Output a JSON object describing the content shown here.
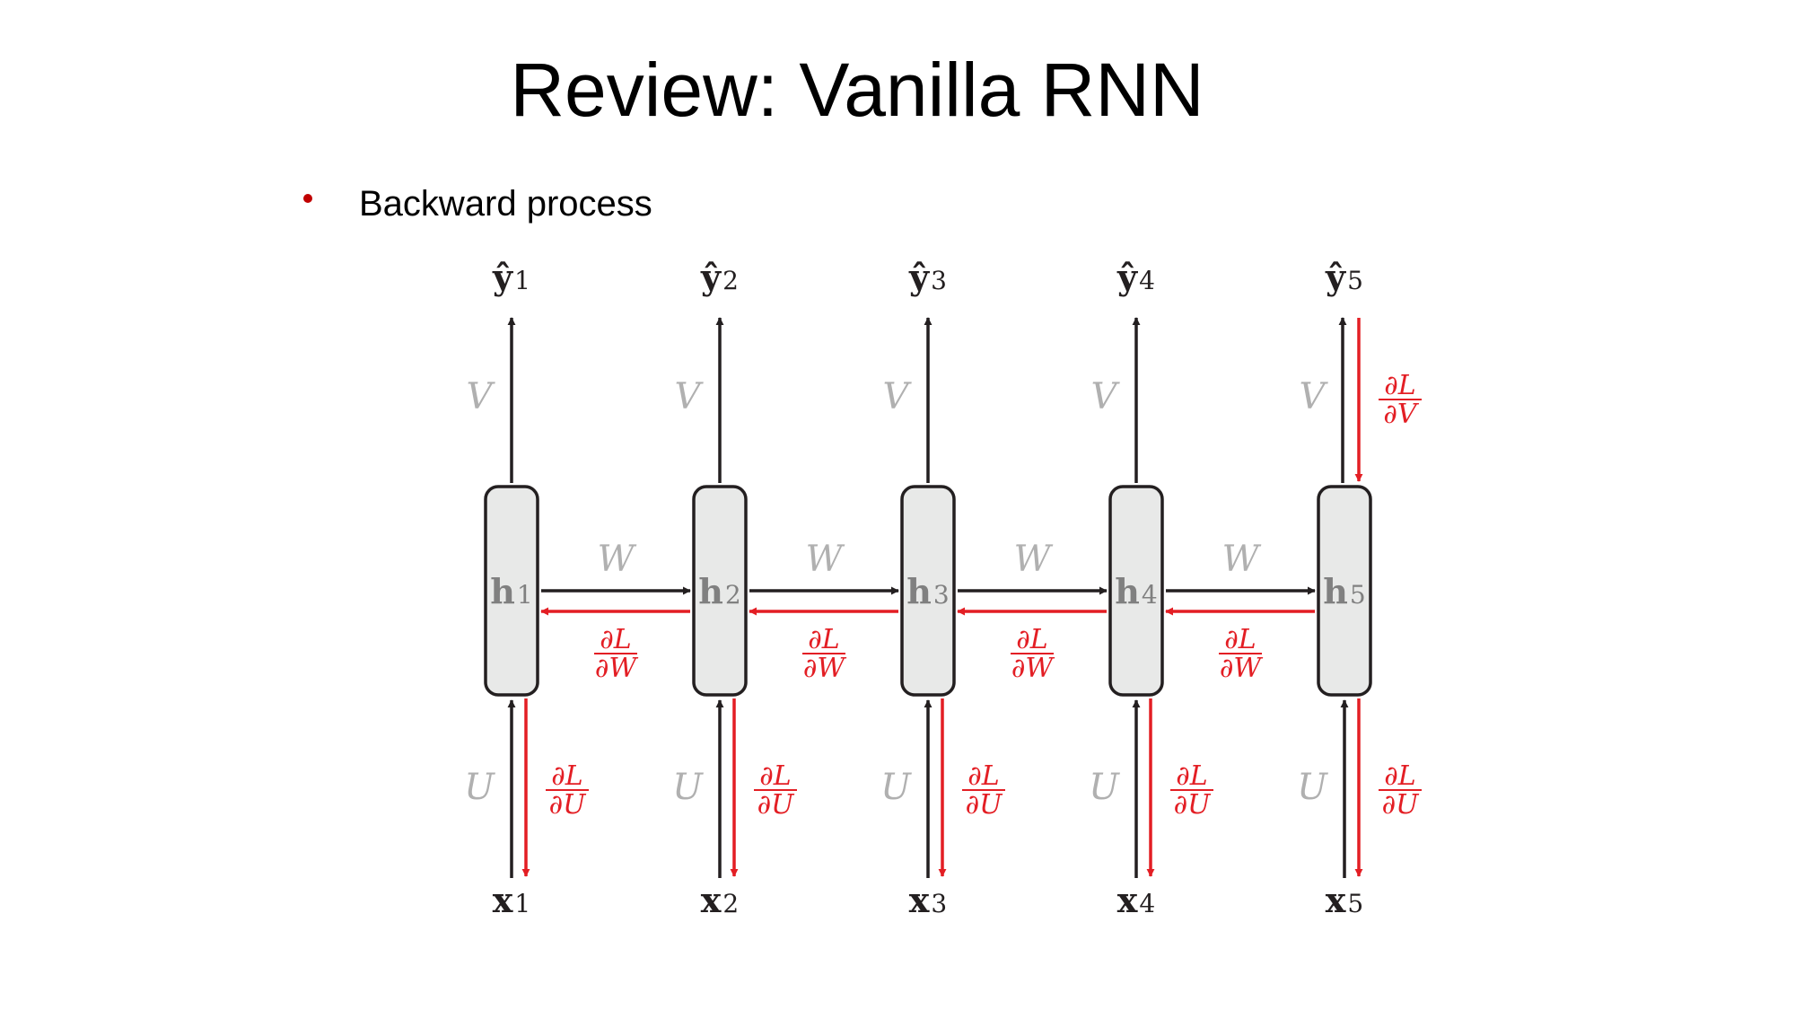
{
  "slide": {
    "title": "Review: Vanilla RNN",
    "bullet": "Backward process"
  },
  "colors": {
    "background": "#ffffff",
    "bullet": "#c00000",
    "forward_arrow": "#231f20",
    "gradient_arrow": "#e31e24",
    "weight_label": "#b0b0b0",
    "hidden_label": "#808080",
    "node_fill": "#e8e9e8",
    "node_stroke": "#231f20"
  },
  "diagram": {
    "outputs": [
      {
        "base": "ŷ",
        "sub": "1"
      },
      {
        "base": "ŷ",
        "sub": "2"
      },
      {
        "base": "ŷ",
        "sub": "3"
      },
      {
        "base": "ŷ",
        "sub": "4"
      },
      {
        "base": "ŷ",
        "sub": "5"
      }
    ],
    "hidden": [
      {
        "base": "h",
        "sub": "1"
      },
      {
        "base": "h",
        "sub": "2"
      },
      {
        "base": "h",
        "sub": "3"
      },
      {
        "base": "h",
        "sub": "4"
      },
      {
        "base": "h",
        "sub": "5"
      }
    ],
    "inputs": [
      {
        "base": "x",
        "sub": "1"
      },
      {
        "base": "x",
        "sub": "2"
      },
      {
        "base": "x",
        "sub": "3"
      },
      {
        "base": "x",
        "sub": "4"
      },
      {
        "base": "x",
        "sub": "5"
      }
    ],
    "weights": {
      "V": "V",
      "W": "W",
      "U": "U"
    },
    "gradients": {
      "numerator": "∂L",
      "dV": "∂V",
      "dW": "∂W",
      "dU": "∂U"
    }
  }
}
